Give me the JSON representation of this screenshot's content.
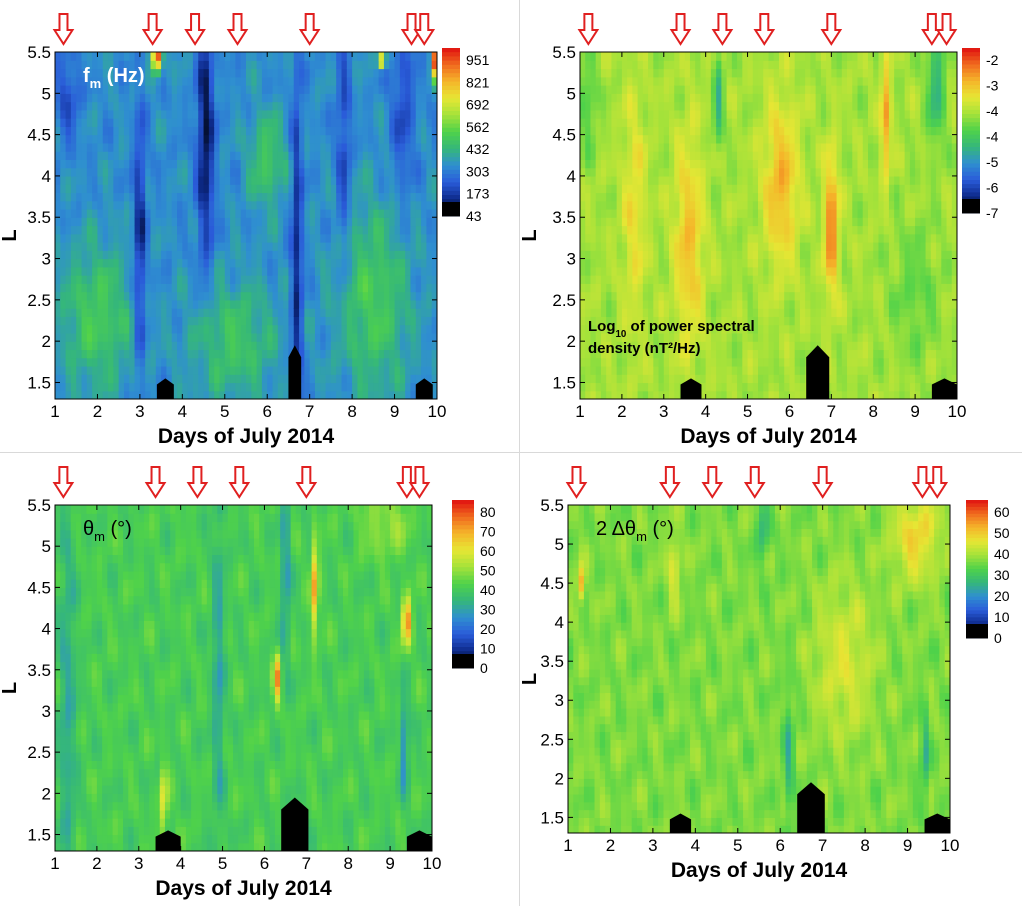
{
  "chart_data": [
    {
      "type": "heatmap",
      "panel": "top-left",
      "annotation": "f",
      "annotation_sub": "m",
      "annotation_unit": "(Hz)",
      "xlabel": "Days of July 2014",
      "ylabel": "L",
      "xlim": [
        1,
        10
      ],
      "ylim": [
        1.3,
        5.5
      ],
      "x_ticks": [
        "1",
        "2",
        "3",
        "4",
        "5",
        "6",
        "7",
        "8",
        "9",
        "10"
      ],
      "y_ticks": [
        "1.5",
        "2",
        "2.5",
        "3",
        "3.5",
        "4",
        "4.5",
        "5",
        "5.5"
      ],
      "colorbar_ticks": [
        "951",
        "821",
        "692",
        "562",
        "432",
        "303",
        "173",
        "43"
      ],
      "colorbar_range": [
        43,
        1000
      ],
      "colorscale": [
        "#000000",
        "#0d2a8a",
        "#2a5bd9",
        "#2f8fd0",
        "#35b77a",
        "#4fd24a",
        "#a5e23a",
        "#e6e634",
        "#f5b52a",
        "#f06a1e",
        "#e01010"
      ],
      "base_value": 330,
      "features": [
        {
          "x": 3.0,
          "y": 3.2,
          "sx": 0.1,
          "sy": 1.1,
          "v": -200
        },
        {
          "x": 4.55,
          "y": 4.5,
          "sx": 0.14,
          "sy": 1.1,
          "v": -240
        },
        {
          "x": 6.7,
          "y": 2.8,
          "sx": 0.09,
          "sy": 1.8,
          "v": -200
        },
        {
          "x": 7.8,
          "y": 4.3,
          "sx": 0.12,
          "sy": 1.1,
          "v": -130
        },
        {
          "x": 9.2,
          "y": 4.8,
          "sx": 0.2,
          "sy": 0.8,
          "v": -120
        },
        {
          "x": 1.3,
          "y": 5.0,
          "sx": 0.2,
          "sy": 0.4,
          "v": -120
        },
        {
          "x": 2.0,
          "y": 2.3,
          "sx": 0.6,
          "sy": 0.6,
          "v": 160
        },
        {
          "x": 5.2,
          "y": 2.0,
          "sx": 0.7,
          "sy": 0.5,
          "v": 140
        },
        {
          "x": 8.5,
          "y": 2.5,
          "sx": 0.6,
          "sy": 0.8,
          "v": 160
        },
        {
          "x": 6.0,
          "y": 4.2,
          "sx": 0.3,
          "sy": 0.4,
          "v": 150
        },
        {
          "x": 3.4,
          "y": 5.45,
          "sx": 0.08,
          "sy": 0.12,
          "v": 700
        },
        {
          "x": 8.7,
          "y": 5.4,
          "sx": 0.06,
          "sy": 0.06,
          "v": 550
        },
        {
          "x": 9.95,
          "y": 5.4,
          "sx": 0.05,
          "sy": 0.15,
          "v": 600
        }
      ],
      "masks": [
        {
          "x0": 3.4,
          "x1": 3.8,
          "ytop": 1.55
        },
        {
          "x0": 6.5,
          "x1": 6.8,
          "ytop": 1.95
        },
        {
          "x0": 9.5,
          "x1": 9.9,
          "ytop": 1.55
        }
      ],
      "arrows_x": [
        1.2,
        3.3,
        4.3,
        5.3,
        7.0,
        9.4,
        9.7
      ]
    },
    {
      "type": "heatmap",
      "panel": "top-right",
      "annotation": "Log",
      "annotation_sub": "10",
      "annotation_unit": "of power spectral density (nT²/Hz)",
      "xlabel": "Days of July 2014",
      "ylabel": "L",
      "xlim": [
        1,
        10
      ],
      "ylim": [
        1.3,
        5.5
      ],
      "x_ticks": [
        "1",
        "2",
        "3",
        "4",
        "5",
        "6",
        "7",
        "8",
        "9",
        "10"
      ],
      "y_ticks": [
        "1.5",
        "2",
        "2.5",
        "3",
        "3.5",
        "4",
        "4.5",
        "5",
        "5.5"
      ],
      "colorbar_ticks": [
        "-2",
        "-3",
        "-4",
        "-4",
        "-5",
        "-6",
        "-7"
      ],
      "colorbar_range": [
        -7,
        -2
      ],
      "colorscale": [
        "#000000",
        "#0d2a8a",
        "#2a5bd9",
        "#2f8fd0",
        "#35b77a",
        "#4fd24a",
        "#a5e23a",
        "#e6e634",
        "#f5b52a",
        "#f06a1e",
        "#e01010"
      ],
      "base_value": -4.0,
      "features": [
        {
          "x": 7.0,
          "y": 3.4,
          "sx": 0.12,
          "sy": 0.6,
          "v": 1.4
        },
        {
          "x": 8.3,
          "y": 4.7,
          "sx": 0.08,
          "sy": 0.5,
          "v": 1.2
        },
        {
          "x": 3.6,
          "y": 3.2,
          "sx": 0.25,
          "sy": 0.9,
          "v": 0.9
        },
        {
          "x": 5.8,
          "y": 3.9,
          "sx": 0.3,
          "sy": 0.7,
          "v": 1.0
        },
        {
          "x": 2.3,
          "y": 3.6,
          "sx": 0.2,
          "sy": 1.0,
          "v": 0.6
        },
        {
          "x": 4.3,
          "y": 4.9,
          "sx": 0.08,
          "sy": 0.4,
          "v": -1.0
        },
        {
          "x": 9.5,
          "y": 5.1,
          "sx": 0.15,
          "sy": 0.5,
          "v": -1.0
        },
        {
          "x": 1.2,
          "y": 4.9,
          "sx": 0.15,
          "sy": 0.4,
          "v": -0.6
        },
        {
          "x": 9.0,
          "y": 2.6,
          "sx": 0.4,
          "sy": 0.6,
          "v": -0.4
        }
      ],
      "masks": [
        {
          "x0": 3.4,
          "x1": 3.9,
          "ytop": 1.55
        },
        {
          "x0": 6.4,
          "x1": 6.95,
          "ytop": 1.95
        },
        {
          "x0": 9.4,
          "x1": 10.0,
          "ytop": 1.55
        }
      ],
      "arrows_x": [
        1.2,
        3.4,
        4.4,
        5.4,
        7.0,
        9.4,
        9.75
      ]
    },
    {
      "type": "heatmap",
      "panel": "bottom-left",
      "annotation": "θ",
      "annotation_sub": "m",
      "annotation_unit": "(°)",
      "xlabel": "Days of July 2014",
      "ylabel": "L",
      "xlim": [
        1,
        10
      ],
      "ylim": [
        1.3,
        5.5
      ],
      "x_ticks": [
        "1",
        "2",
        "3",
        "4",
        "5",
        "6",
        "7",
        "8",
        "9",
        "10"
      ],
      "y_ticks": [
        "1.5",
        "2",
        "2.5",
        "3",
        "3.5",
        "4",
        "4.5",
        "5",
        "5.5"
      ],
      "colorbar_ticks": [
        "80",
        "70",
        "60",
        "50",
        "40",
        "30",
        "20",
        "10",
        "0"
      ],
      "colorbar_range": [
        0,
        90
      ],
      "colorscale": [
        "#000000",
        "#0d2a8a",
        "#2a5bd9",
        "#2f8fd0",
        "#35b77a",
        "#4fd24a",
        "#a5e23a",
        "#e6e634",
        "#f5b52a",
        "#f06a1e",
        "#e01010"
      ],
      "base_value": 43,
      "features": [
        {
          "x": 7.2,
          "y": 4.5,
          "sx": 0.06,
          "sy": 0.4,
          "v": 30
        },
        {
          "x": 9.4,
          "y": 4.1,
          "sx": 0.08,
          "sy": 0.2,
          "v": 35
        },
        {
          "x": 6.3,
          "y": 3.4,
          "sx": 0.06,
          "sy": 0.2,
          "v": 32
        },
        {
          "x": 3.6,
          "y": 1.9,
          "sx": 0.06,
          "sy": 0.3,
          "v": 22
        },
        {
          "x": 1.3,
          "y": 3.0,
          "sx": 0.15,
          "sy": 2.0,
          "v": -10
        },
        {
          "x": 4.9,
          "y": 3.5,
          "sx": 0.1,
          "sy": 1.5,
          "v": -12
        },
        {
          "x": 6.5,
          "y": 4.7,
          "sx": 0.08,
          "sy": 0.8,
          "v": -14
        },
        {
          "x": 9.35,
          "y": 2.6,
          "sx": 0.06,
          "sy": 0.4,
          "v": -20
        },
        {
          "x": 8.9,
          "y": 5.3,
          "sx": 0.4,
          "sy": 0.3,
          "v": 10
        }
      ],
      "masks": [
        {
          "x0": 3.4,
          "x1": 4.0,
          "ytop": 1.55
        },
        {
          "x0": 6.4,
          "x1": 7.05,
          "ytop": 1.95
        },
        {
          "x0": 9.4,
          "x1": 10.0,
          "ytop": 1.55
        }
      ],
      "arrows_x": [
        1.2,
        3.4,
        4.4,
        5.4,
        7.0,
        9.4,
        9.7
      ]
    },
    {
      "type": "heatmap",
      "panel": "bottom-right",
      "annotation": "2 Δθ",
      "annotation_sub": "m",
      "annotation_unit": "(°)",
      "xlabel": "Days of July 2014",
      "ylabel": "L",
      "xlim": [
        1,
        10
      ],
      "ylim": [
        1.3,
        5.5
      ],
      "x_ticks": [
        "1",
        "2",
        "3",
        "4",
        "5",
        "6",
        "7",
        "8",
        "9",
        "10"
      ],
      "y_ticks": [
        "1.5",
        "2",
        "2.5",
        "3",
        "3.5",
        "4",
        "4.5",
        "5",
        "5.5"
      ],
      "colorbar_ticks": [
        "60",
        "50",
        "40",
        "30",
        "20",
        "10",
        "0"
      ],
      "colorbar_range": [
        0,
        65
      ],
      "colorscale": [
        "#000000",
        "#0d2a8a",
        "#2a5bd9",
        "#2f8fd0",
        "#35b77a",
        "#4fd24a",
        "#a5e23a",
        "#e6e634",
        "#f5b52a",
        "#f06a1e",
        "#e01010"
      ],
      "base_value": 36,
      "features": [
        {
          "x": 1.3,
          "y": 4.5,
          "sx": 0.06,
          "sy": 0.15,
          "v": 18
        },
        {
          "x": 9.2,
          "y": 5.1,
          "sx": 0.4,
          "sy": 0.4,
          "v": 12
        },
        {
          "x": 3.5,
          "y": 4.7,
          "sx": 0.1,
          "sy": 0.3,
          "v": 10
        },
        {
          "x": 6.2,
          "y": 2.3,
          "sx": 0.08,
          "sy": 0.6,
          "v": -10
        },
        {
          "x": 5.6,
          "y": 5.2,
          "sx": 0.1,
          "sy": 0.3,
          "v": -10
        },
        {
          "x": 9.4,
          "y": 2.3,
          "sx": 0.06,
          "sy": 0.4,
          "v": -12
        },
        {
          "x": 7.5,
          "y": 3.5,
          "sx": 0.5,
          "sy": 0.7,
          "v": 8
        }
      ],
      "masks": [
        {
          "x0": 3.4,
          "x1": 3.9,
          "ytop": 1.55
        },
        {
          "x0": 6.4,
          "x1": 7.05,
          "ytop": 1.95
        },
        {
          "x0": 9.4,
          "x1": 10.0,
          "ytop": 1.55
        }
      ],
      "arrows_x": [
        1.2,
        3.4,
        4.4,
        5.4,
        7.0,
        9.35,
        9.7
      ]
    }
  ]
}
